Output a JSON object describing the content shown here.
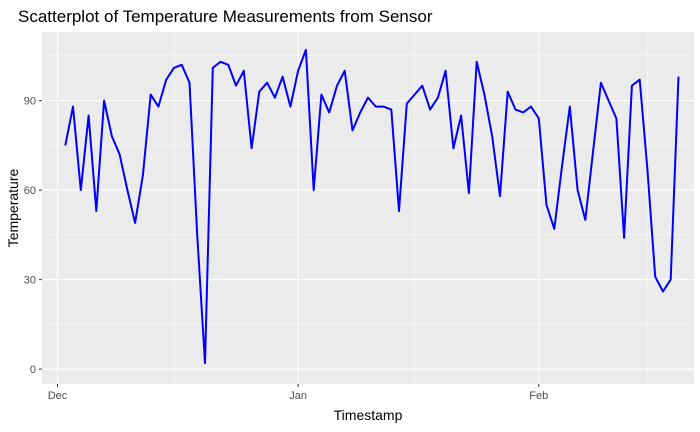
{
  "chart_data": {
    "type": "line",
    "title": "Scatterplot of Temperature Measurements from Sensor",
    "xlabel": "Timestamp",
    "ylabel": "Temperature",
    "x_ticks": [
      "Dec",
      "Jan",
      "Feb"
    ],
    "y_ticks": [
      0,
      30,
      60,
      90
    ],
    "xlim": [
      "2013-11-29",
      "2014-02-21"
    ],
    "ylim": [
      -5,
      113
    ],
    "grid": true,
    "background": "#EBEBEB",
    "gridColor": "#FFFFFF",
    "series": [
      {
        "color": "#0000FF",
        "x": [
          "2013-12-02",
          "2013-12-03",
          "2013-12-04",
          "2013-12-05",
          "2013-12-06",
          "2013-12-07",
          "2013-12-08",
          "2013-12-09",
          "2013-12-10",
          "2013-12-11",
          "2013-12-12",
          "2013-12-13",
          "2013-12-14",
          "2013-12-15",
          "2013-12-16",
          "2013-12-17",
          "2013-12-18",
          "2013-12-19",
          "2013-12-20",
          "2013-12-21",
          "2013-12-22",
          "2013-12-23",
          "2013-12-24",
          "2013-12-25",
          "2013-12-26",
          "2013-12-27",
          "2013-12-28",
          "2013-12-29",
          "2013-12-30",
          "2013-12-31",
          "2014-01-01",
          "2014-01-02",
          "2014-01-03",
          "2014-01-04",
          "2014-01-05",
          "2014-01-06",
          "2014-01-07",
          "2014-01-08",
          "2014-01-09",
          "2014-01-10",
          "2014-01-11",
          "2014-01-12",
          "2014-01-13",
          "2014-01-14",
          "2014-01-15",
          "2014-01-16",
          "2014-01-17",
          "2014-01-18",
          "2014-01-19",
          "2014-01-20",
          "2014-01-21",
          "2014-01-22",
          "2014-01-23",
          "2014-01-24",
          "2014-01-25",
          "2014-01-26",
          "2014-01-27",
          "2014-01-28",
          "2014-01-29",
          "2014-01-30",
          "2014-01-31",
          "2014-02-01",
          "2014-02-02",
          "2014-02-03",
          "2014-02-04",
          "2014-02-05",
          "2014-02-06",
          "2014-02-07",
          "2014-02-08",
          "2014-02-09",
          "2014-02-10",
          "2014-02-11",
          "2014-02-12",
          "2014-02-13",
          "2014-02-14",
          "2014-02-15",
          "2014-02-16",
          "2014-02-17",
          "2014-02-18",
          "2014-02-19"
        ],
        "y": [
          75,
          88,
          60,
          85,
          53,
          90,
          78,
          72,
          60,
          49,
          65,
          92,
          88,
          97,
          101,
          102,
          96,
          45,
          2,
          101,
          103,
          102,
          95,
          100,
          74,
          93,
          96,
          91,
          98,
          88,
          100,
          107,
          60,
          92,
          86,
          95,
          100,
          80,
          86,
          91,
          88,
          88,
          87,
          53,
          89,
          92,
          95,
          87,
          91,
          100,
          74,
          85,
          59,
          103,
          92,
          78,
          58,
          93,
          87,
          86,
          88,
          84,
          55,
          47,
          68,
          88,
          60,
          50,
          73,
          96,
          90,
          84,
          44,
          95,
          97,
          67,
          31,
          26,
          30,
          98
        ]
      }
    ]
  }
}
